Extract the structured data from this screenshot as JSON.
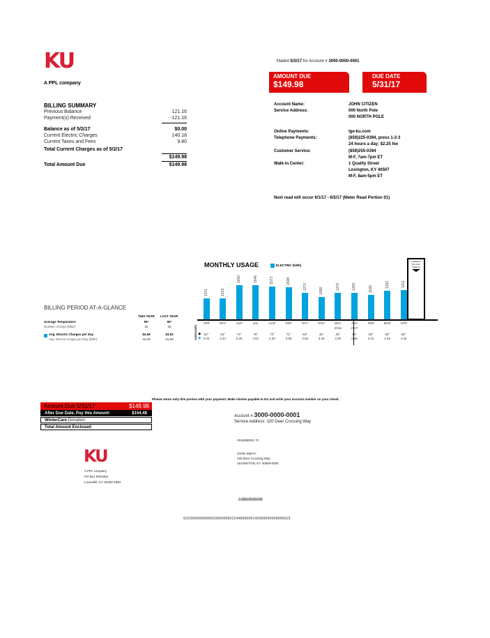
{
  "brand": {
    "logo": "KU",
    "tagline": "A PPL company",
    "color": "#d71f36"
  },
  "header": {
    "mailed_label": "Mailed",
    "mailed_date": "5/3/17",
    "for_account_label": "for Account #",
    "account_number": "3000-0000-0001"
  },
  "amount_due": {
    "label": "AMOUNT DUE",
    "value": "$149.98"
  },
  "due_date": {
    "label": "DUE DATE",
    "value": "5/31/17"
  },
  "billing_summary": {
    "title": "BILLING SUMMARY",
    "rows": [
      {
        "label": "Previous Balance",
        "value": "121.16",
        "bold": false
      },
      {
        "label": "Payment(s) Received",
        "value": "-121.16",
        "bold": false
      },
      {
        "label": "Balance as of 5/2/17",
        "value": "$0.00",
        "bold": true
      },
      {
        "label": "Current Electric Charges",
        "value": "140.18",
        "bold": false
      },
      {
        "label": "Current Taxes and Fees",
        "value": "9.80",
        "bold": false
      },
      {
        "label": "Total Current Charges as of 5/2/17",
        "value": "",
        "bold": true
      },
      {
        "label": "",
        "value": "$149.98",
        "bold": true
      },
      {
        "label": "Total Amount Due",
        "value": "$149.98",
        "bold": true
      }
    ]
  },
  "account_info": [
    {
      "label": "Account Name:",
      "lines": [
        "JOHN CITIZEN"
      ]
    },
    {
      "label": "Service Address:",
      "lines": [
        "000 North Pole",
        "000 NORTH POLE"
      ]
    },
    {
      "label": "Online Payments:",
      "lines": [
        "lge-ku.com"
      ]
    },
    {
      "label": "Telephone Payments:",
      "lines": [
        "(859)225-0394, press 1-2-3",
        "24 hours a day; $2.25 fee"
      ]
    },
    {
      "label": "Customer Service:",
      "lines": [
        "(859)255-0394",
        "M-F, 7am-7pm ET"
      ]
    },
    {
      "label": "Walk-in Center:",
      "lines": [
        "1 Quality Street",
        "Lexington, KY 40507",
        "M-F, 8am-5pm ET"
      ]
    }
  ],
  "next_read": "Next read will occur 6/1/17 - 6/5/17 (Meter Read Portion 01)",
  "glance": {
    "title": "BILLING PERIOD AT-A-GLANCE",
    "headers": [
      "THIS YEAR",
      "LAST YEAR"
    ],
    "rows": [
      {
        "label": "Average Temperature",
        "this": "55°",
        "last": "55°",
        "bold": true
      },
      {
        "label": "Number of Days Billed",
        "this": "32",
        "last": "32",
        "bold": false
      },
      {
        "label": "Avg. Electric Charges per Day",
        "this": "$4.69",
        "last": "$3.62",
        "bold": true
      },
      {
        "label": "Avg. Electric Usage per Day (kWh)",
        "this": "44.09",
        "last": "31.59",
        "bold": false
      }
    ]
  },
  "chart_data": {
    "type": "bar",
    "title": "MONTHLY USAGE",
    "series": [
      {
        "name": "ELECTRIC (kWh)",
        "color": "#00a3e0",
        "values": [
          1011,
          1019,
          1650,
          1646,
          1573,
          1538,
          1270,
          1088,
          1270,
          1269,
          1180,
          1392,
          1411
        ]
      }
    ],
    "categories": [
      "APR",
      "MAY",
      "JUN",
      "JUL",
      "AUG",
      "SEP",
      "OCT",
      "NOV",
      "DEC",
      "JAN",
      "FEB",
      "MAR",
      "APR"
    ],
    "year_labels": {
      "DEC": "2016",
      "JAN": "2017"
    },
    "current_period_label": "CURRENT BILLING PERIOD",
    "averages_label": "AVERAGES",
    "avg_temps": [
      "52°",
      "62°",
      "72°",
      "75°",
      "73°",
      "74°",
      "63°",
      "45°",
      "40°",
      "33°",
      "28°",
      "38°",
      "55°"
    ],
    "avg_usage": [
      "3.02",
      "3.44",
      "5.28",
      "4.81",
      "4.30",
      "4.68",
      "3.58",
      "3.40",
      "3.90",
      "3.66",
      "3.42",
      "4.53",
      "4.38"
    ]
  },
  "stub": {
    "instruction": "Please return only this portion with your payment. Make checks payable to KU and write your account number on your check.",
    "amount_due_label": "Amount Due 5/31/17",
    "amount_due_value": "$149.98",
    "after_due_label": "After Due Date, Pay this Amount:",
    "after_due_value": "$154.48",
    "wintercare_bold": "WinterCare",
    "wintercare_label": "Donation:",
    "total_enclosed_label": "Total Amount Enclosed:",
    "account_label": "Account #",
    "account_number": "3000-0000-0001",
    "service_address": "Service Address: 100 Deer Crossing Way",
    "remit": [
      "A PPL company",
      "PO Box 9001954",
      "Louisville, KY 40290-1954"
    ],
    "ref": "#916090001 7#",
    "mail_to": [
      "JOHN SMITH",
      "100 Deer Crossing Way",
      "LEXINGTON, KY 40509-0000"
    ],
    "barcode": "ılıılıllıllılıılllıılılllılılıllıll",
    "scanline": "020300000000001000000001544800000149980000000000020"
  }
}
